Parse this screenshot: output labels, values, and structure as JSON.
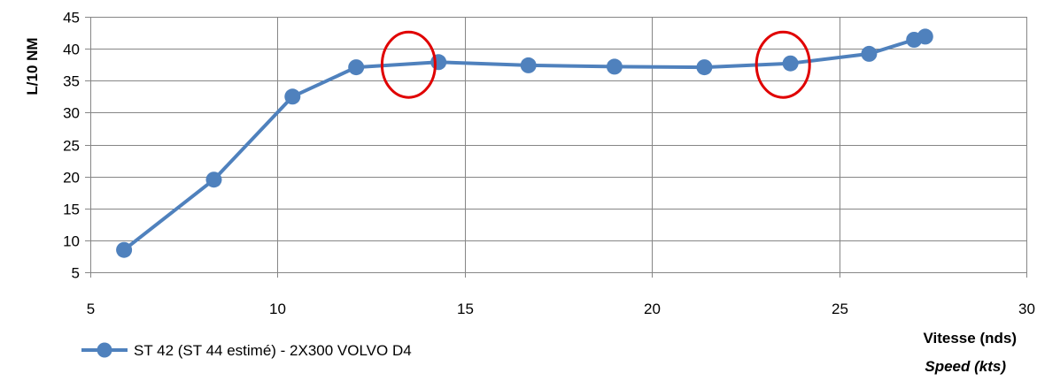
{
  "chart_data": {
    "type": "line",
    "title": "",
    "xlabel": "Vitesse (nds)",
    "xlabel_secondary": "Speed (kts)",
    "ylabel": "L/10 NM",
    "xlim": [
      5,
      30
    ],
    "ylim": [
      5,
      45
    ],
    "x_ticks": [
      5,
      10,
      15,
      20,
      25,
      30
    ],
    "y_ticks": [
      5,
      10,
      15,
      20,
      25,
      30,
      35,
      40,
      45
    ],
    "grid": true,
    "legend_position": "bottom-left",
    "series": [
      {
        "name": "ST 42 (ST 44 estimé) - 2X300 VOLVO D4",
        "color": "#4F81BD",
        "x": [
          5.9,
          8.3,
          10.4,
          12.1,
          14.3,
          16.7,
          19.0,
          21.4,
          23.7,
          25.8,
          27.0,
          27.3
        ],
        "y": [
          8.5,
          19.5,
          32.5,
          37.1,
          37.9,
          37.4,
          37.2,
          37.1,
          37.7,
          39.2,
          41.4,
          41.9
        ]
      }
    ],
    "annotations": [
      {
        "type": "ellipse",
        "color": "#E00000",
        "cx": 13.5,
        "cy": 37.5
      },
      {
        "type": "ellipse",
        "color": "#E00000",
        "cx": 23.5,
        "cy": 37.5
      }
    ]
  }
}
